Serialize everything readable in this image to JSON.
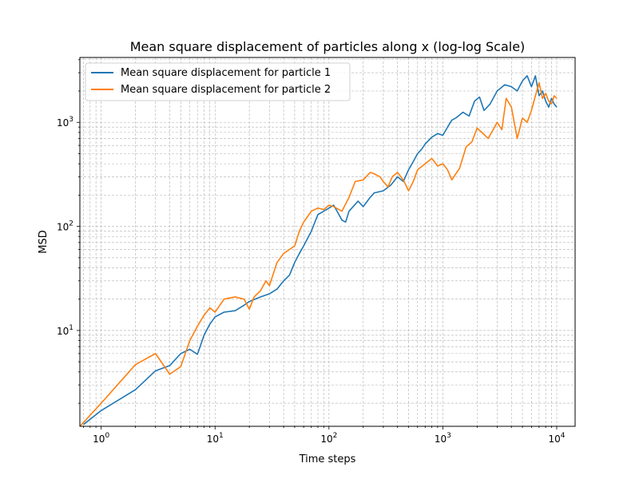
{
  "chart_data": {
    "type": "line",
    "title": "Mean square displacement of particles along x (log-log Scale)",
    "xlabel": "Time steps",
    "ylabel": "MSD",
    "xscale": "log",
    "yscale": "log",
    "xlim": [
      0.65,
      14500
    ],
    "ylim": [
      1.2,
      4200
    ],
    "grid": true,
    "legend_position": "top-left",
    "x_ticks": [
      {
        "value": 1,
        "base": "10",
        "exp": "0"
      },
      {
        "value": 10,
        "base": "10",
        "exp": "1"
      },
      {
        "value": 100,
        "base": "10",
        "exp": "2"
      },
      {
        "value": 1000,
        "base": "10",
        "exp": "3"
      },
      {
        "value": 10000,
        "base": "10",
        "exp": "4"
      }
    ],
    "y_ticks": [
      {
        "value": 10,
        "base": "10",
        "exp": "1"
      },
      {
        "value": 100,
        "base": "10",
        "exp": "2"
      },
      {
        "value": 1000,
        "base": "10",
        "exp": "3"
      }
    ],
    "series": [
      {
        "name": "Mean square displacement for particle 1",
        "color": "#1f77b4",
        "points": [
          [
            0.7,
            1.25
          ],
          [
            1,
            1.7
          ],
          [
            2,
            2.7
          ],
          [
            3,
            4.1
          ],
          [
            4,
            4.6
          ],
          [
            5,
            6.0
          ],
          [
            6,
            6.6
          ],
          [
            7,
            5.9
          ],
          [
            8,
            9.0
          ],
          [
            9,
            11.5
          ],
          [
            10,
            13.5
          ],
          [
            12,
            15.0
          ],
          [
            15,
            15.5
          ],
          [
            18,
            17.5
          ],
          [
            20,
            19.0
          ],
          [
            25,
            21.0
          ],
          [
            30,
            22.5
          ],
          [
            35,
            25.0
          ],
          [
            40,
            30.0
          ],
          [
            45,
            34.0
          ],
          [
            50,
            45.0
          ],
          [
            55,
            55.0
          ],
          [
            60,
            65.0
          ],
          [
            70,
            90.0
          ],
          [
            80,
            130.0
          ],
          [
            90,
            140.0
          ],
          [
            100,
            150.0
          ],
          [
            110,
            160.0
          ],
          [
            120,
            135.0
          ],
          [
            130,
            115.0
          ],
          [
            140,
            110.0
          ],
          [
            150,
            140.0
          ],
          [
            180,
            175.0
          ],
          [
            200,
            155.0
          ],
          [
            230,
            190.0
          ],
          [
            250,
            210.0
          ],
          [
            300,
            220.0
          ],
          [
            350,
            250.0
          ],
          [
            400,
            300.0
          ],
          [
            450,
            270.0
          ],
          [
            500,
            350.0
          ],
          [
            550,
            420.0
          ],
          [
            600,
            500.0
          ],
          [
            650,
            550.0
          ],
          [
            700,
            620.0
          ],
          [
            800,
            720.0
          ],
          [
            900,
            780.0
          ],
          [
            1000,
            750.0
          ],
          [
            1100,
            900.0
          ],
          [
            1200,
            1050.0
          ],
          [
            1300,
            1100.0
          ],
          [
            1500,
            1250.0
          ],
          [
            1700,
            1150.0
          ],
          [
            1900,
            1600.0
          ],
          [
            2100,
            1750.0
          ],
          [
            2300,
            1300.0
          ],
          [
            2600,
            1500.0
          ],
          [
            3000,
            2000.0
          ],
          [
            3500,
            2300.0
          ],
          [
            4000,
            2200.0
          ],
          [
            4500,
            2000.0
          ],
          [
            5000,
            2500.0
          ],
          [
            5500,
            2800.0
          ],
          [
            6000,
            2200.0
          ],
          [
            6500,
            2800.0
          ],
          [
            7000,
            1800.0
          ],
          [
            7500,
            2000.0
          ],
          [
            8000,
            1600.0
          ],
          [
            8500,
            1400.0
          ],
          [
            9000,
            1700.0
          ],
          [
            9500,
            1500.0
          ],
          [
            10000,
            1400.0
          ]
        ]
      },
      {
        "name": "Mean square displacement for particle 2",
        "color": "#ff7f0e",
        "points": [
          [
            0.65,
            1.2
          ],
          [
            1,
            2.0
          ],
          [
            2,
            4.7
          ],
          [
            3,
            6.0
          ],
          [
            4,
            3.8
          ],
          [
            5,
            4.5
          ],
          [
            6,
            8.0
          ],
          [
            7,
            11.0
          ],
          [
            8,
            14.0
          ],
          [
            9,
            16.5
          ],
          [
            10,
            15.0
          ],
          [
            12,
            20.0
          ],
          [
            15,
            21.0
          ],
          [
            18,
            20.0
          ],
          [
            20,
            16.0
          ],
          [
            22,
            21.0
          ],
          [
            25,
            24.0
          ],
          [
            28,
            30.0
          ],
          [
            30,
            27.0
          ],
          [
            35,
            45.0
          ],
          [
            40,
            55.0
          ],
          [
            45,
            60.0
          ],
          [
            50,
            65.0
          ],
          [
            55,
            90.0
          ],
          [
            60,
            110.0
          ],
          [
            70,
            140.0
          ],
          [
            80,
            150.0
          ],
          [
            90,
            145.0
          ],
          [
            100,
            160.0
          ],
          [
            110,
            155.0
          ],
          [
            130,
            140.0
          ],
          [
            150,
            190.0
          ],
          [
            170,
            270.0
          ],
          [
            200,
            280.0
          ],
          [
            230,
            330.0
          ],
          [
            250,
            320.0
          ],
          [
            280,
            300.0
          ],
          [
            300,
            270.0
          ],
          [
            330,
            240.0
          ],
          [
            360,
            300.0
          ],
          [
            400,
            330.0
          ],
          [
            450,
            280.0
          ],
          [
            500,
            220.0
          ],
          [
            550,
            270.0
          ],
          [
            600,
            350.0
          ],
          [
            700,
            400.0
          ],
          [
            800,
            450.0
          ],
          [
            900,
            380.0
          ],
          [
            1000,
            400.0
          ],
          [
            1100,
            350.0
          ],
          [
            1200,
            280.0
          ],
          [
            1300,
            320.0
          ],
          [
            1400,
            360.0
          ],
          [
            1600,
            580.0
          ],
          [
            1800,
            650.0
          ],
          [
            2000,
            880.0
          ],
          [
            2200,
            800.0
          ],
          [
            2500,
            700.0
          ],
          [
            2800,
            870.0
          ],
          [
            3000,
            1000.0
          ],
          [
            3300,
            850.0
          ],
          [
            3600,
            1700.0
          ],
          [
            4000,
            1400.0
          ],
          [
            4500,
            700.0
          ],
          [
            5000,
            1100.0
          ],
          [
            5500,
            1000.0
          ],
          [
            6000,
            1300.0
          ],
          [
            6500,
            1800.0
          ],
          [
            7000,
            2400.0
          ],
          [
            7500,
            1700.0
          ],
          [
            8000,
            1900.0
          ],
          [
            8500,
            1600.0
          ],
          [
            9000,
            1500.0
          ],
          [
            9500,
            1800.0
          ],
          [
            10000,
            1700.0
          ]
        ]
      }
    ]
  }
}
